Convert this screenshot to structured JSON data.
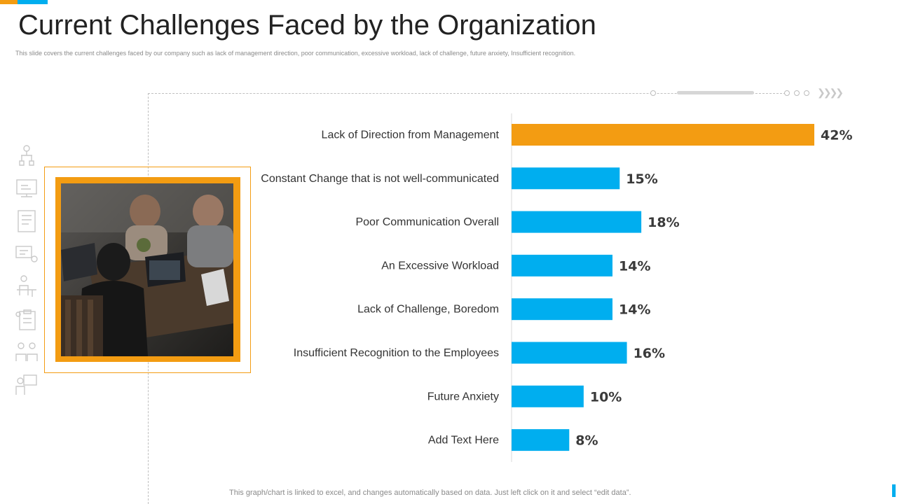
{
  "slide": {
    "title": "Current Challenges Faced by the Organization",
    "subtitle": "This slide covers the current challenges faced by our company such as lack of management  direction, poor communication,  excessive workload, lack of challenge, future anxiety, Insufficient recognition.",
    "footer_note": "This graph/chart is linked to excel,  and changes automatically based on data. Just left click on it and select “edit data”."
  },
  "colors": {
    "accent_orange": "#f39c12",
    "accent_blue": "#00aeef",
    "highlight_bar": "#f39c12",
    "bar": "#00aeef"
  },
  "side_icons": [
    "org-chart-icon",
    "presentation-icon",
    "document-icon",
    "meeting-icon",
    "desk-worker-icon",
    "clipboard-icon",
    "team-icon",
    "analyst-icon"
  ],
  "photo": {
    "description": "people-working-on-laptops-photo"
  },
  "chart_data": {
    "type": "bar",
    "orientation": "horizontal",
    "categories": [
      "Lack of Direction from Management",
      "Constant Change that is not well-communicated",
      "Poor Communication Overall",
      "An Excessive Workload",
      "Lack of Challenge, Boredom",
      "Insufficient Recognition to the Employees",
      "Future Anxiety",
      "Add Text Here"
    ],
    "values": [
      42,
      15,
      18,
      14,
      14,
      16,
      10,
      8
    ],
    "value_labels": [
      "42%",
      "15%",
      "18%",
      "14%",
      "14%",
      "16%",
      "10%",
      "8%"
    ],
    "highlight_index": 0,
    "unit": "%",
    "xlim": [
      0,
      50
    ],
    "grid": false,
    "legend": "none"
  }
}
